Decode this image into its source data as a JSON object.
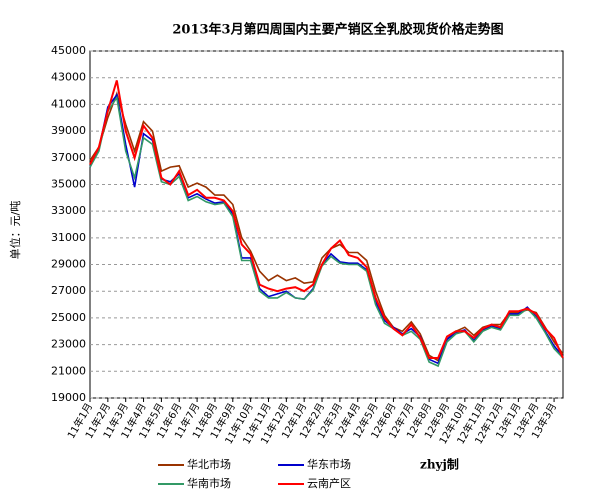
{
  "chart_data": {
    "type": "line",
    "title": "2013年3月第四周国内主要产销区全乳胶现货价格走势图",
    "y_label": "单位：元/吨",
    "annotation": "zhyj制",
    "categories": [
      "11年1月",
      null,
      "11年2月",
      null,
      "11年3月",
      null,
      "11年4月",
      null,
      "11年5月",
      null,
      "11年6月",
      null,
      "11年7月",
      null,
      "11年8月",
      null,
      "11年9月",
      null,
      "11年10月",
      null,
      "11年11月",
      null,
      "11年12月",
      null,
      "12年1月",
      null,
      "12年2月",
      null,
      "12年3月",
      null,
      "12年4月",
      null,
      "12年5月",
      null,
      "12年6月",
      null,
      "12年7月",
      null,
      "12年8月",
      null,
      "12年9月",
      null,
      "12年10月",
      null,
      "12年11月",
      null,
      "12年12月",
      null,
      "13年1月",
      null,
      "13年2月",
      null,
      "13年3月",
      null
    ],
    "series": [
      {
        "name": "华北市场",
        "color": "#993300",
        "values": [
          36800,
          37800,
          40000,
          41800,
          39500,
          37500,
          39700,
          39000,
          36000,
          36300,
          36400,
          34800,
          35100,
          34800,
          34200,
          34200,
          33500,
          31000,
          30000,
          28500,
          27800,
          28200,
          27800,
          28000,
          27600,
          27700,
          29500,
          30200,
          30500,
          29900,
          29900,
          29300,
          27000,
          25200,
          24300,
          24000,
          24700,
          23800,
          22200,
          21800,
          23400,
          24000,
          24300,
          23700,
          24300,
          24500,
          24500,
          25400,
          25400,
          25600,
          25400,
          24300,
          23200,
          22300
        ]
      },
      {
        "name": "华东市场",
        "color": "#0000cc",
        "values": [
          36300,
          37700,
          40800,
          41700,
          38000,
          34800,
          38800,
          38300,
          35400,
          35200,
          35800,
          34000,
          34300,
          33900,
          33600,
          33700,
          32800,
          29500,
          29500,
          27200,
          26600,
          26800,
          27000,
          26500,
          26400,
          27200,
          29000,
          29800,
          29200,
          29100,
          29100,
          28600,
          26200,
          24800,
          24300,
          23800,
          24200,
          23600,
          21900,
          21600,
          23400,
          23900,
          24100,
          23300,
          24100,
          24400,
          24200,
          25300,
          25300,
          25800,
          25100,
          24000,
          22900,
          22100
        ]
      },
      {
        "name": "华南市场",
        "color": "#339966",
        "values": [
          36300,
          37500,
          40500,
          41500,
          37500,
          35500,
          38500,
          38000,
          35200,
          35000,
          35600,
          33800,
          34100,
          33700,
          33500,
          33600,
          32600,
          29300,
          29300,
          27000,
          26500,
          26500,
          26900,
          26500,
          26400,
          27100,
          28900,
          29600,
          29100,
          29000,
          29000,
          28500,
          26000,
          24600,
          24200,
          23700,
          24000,
          23400,
          21700,
          21400,
          23200,
          23800,
          24000,
          23200,
          24000,
          24300,
          24100,
          25200,
          25200,
          25700,
          25000,
          23900,
          22700,
          22000
        ]
      },
      {
        "name": "云南产区",
        "color": "#ff0000",
        "values": [
          36500,
          37800,
          40500,
          42800,
          39000,
          37000,
          39400,
          38500,
          35500,
          35000,
          36000,
          34200,
          34600,
          34000,
          34000,
          33800,
          33000,
          30500,
          29800,
          27500,
          27200,
          27000,
          27200,
          27300,
          27000,
          27500,
          29000,
          30200,
          30800,
          29700,
          29500,
          28800,
          26500,
          25000,
          24200,
          23700,
          24500,
          23500,
          22000,
          22000,
          23600,
          24000,
          24000,
          23500,
          24200,
          24500,
          24300,
          25500,
          25500,
          25700,
          25300,
          24200,
          23500,
          22000
        ]
      }
    ],
    "ylim": [
      19000,
      45000
    ],
    "yticks": [
      19000,
      21000,
      23000,
      25000,
      27000,
      29000,
      31000,
      33000,
      35000,
      37000,
      39000,
      41000,
      43000,
      45000
    ],
    "grid": true
  }
}
